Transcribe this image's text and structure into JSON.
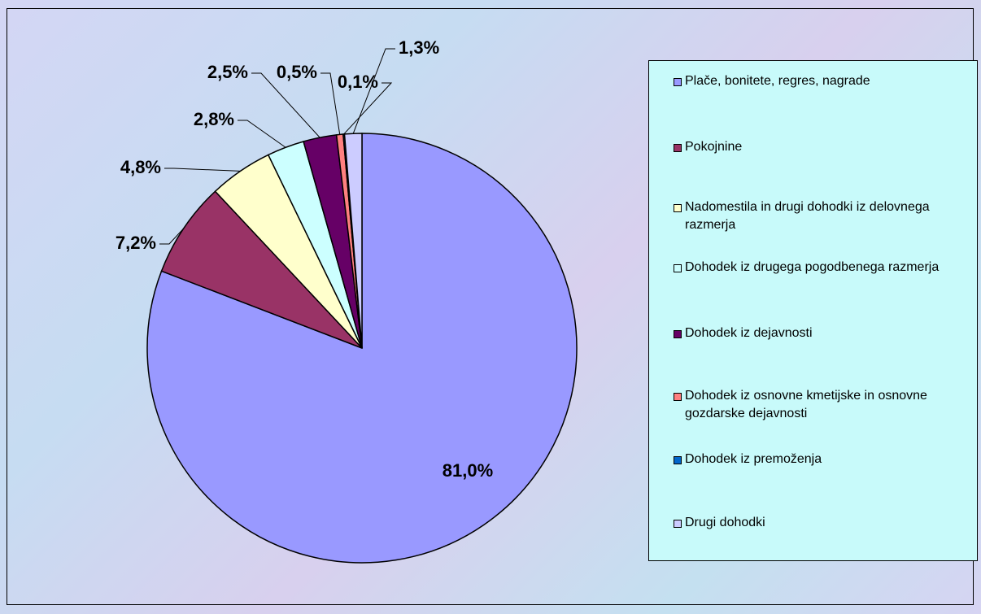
{
  "chart_data": {
    "type": "pie",
    "categories": [
      "Plače, bonitete, regres, nagrade",
      "Pokojnine",
      "Nadomestila in drugi dohodki iz delovnega razmerja",
      "Dohodek iz drugega pogodbenega razmerja",
      "Dohodek iz dejavnosti",
      "Dohodek iz osnovne kmetijske in osnovne gozdarske dejavnosti",
      "Dohodek iz premoženja",
      "Drugi dohodki"
    ],
    "values": [
      81.0,
      7.2,
      4.8,
      2.8,
      2.5,
      0.5,
      0.1,
      1.3
    ],
    "value_labels": [
      "81,0%",
      "7,2%",
      "4,8%",
      "2,8%",
      "2,5%",
      "0,5%",
      "0,1%",
      "1,3%"
    ],
    "colors": [
      "#9999ff",
      "#993366",
      "#ffffcc",
      "#ccffff",
      "#660066",
      "#ff8080",
      "#0066cc",
      "#ccccff"
    ],
    "legend": "right"
  }
}
